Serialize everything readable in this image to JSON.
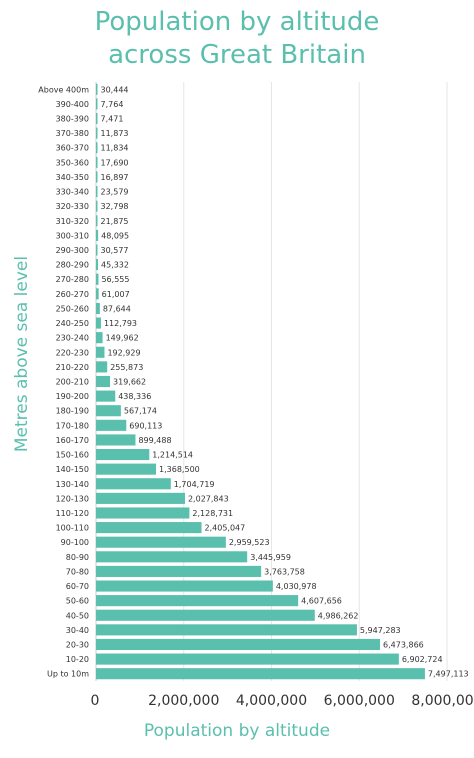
{
  "title_line1": "Population by altitude",
  "title_line2": "across Great Britain",
  "chart_data": {
    "type": "bar",
    "orientation": "horizontal",
    "title": "Population by altitude across Great Britain",
    "xlabel": "Population by altitude",
    "ylabel": "Metres above sea level",
    "xlim": [
      0,
      8000000
    ],
    "xticks": [
      "0",
      "2,000,000",
      "4,000,000",
      "6,000,000",
      "8,000,000"
    ],
    "grid": true,
    "bar_color": "#5bbfae",
    "categories": [
      "Above 400m",
      "390-400",
      "380-390",
      "370-380",
      "360-370",
      "350-360",
      "340-350",
      "330-340",
      "320-330",
      "310-320",
      "300-310",
      "290-300",
      "280-290",
      "270-280",
      "260-270",
      "250-260",
      "240-250",
      "230-240",
      "220-230",
      "210-220",
      "200-210",
      "190-200",
      "180-190",
      "170-180",
      "160-170",
      "150-160",
      "140-150",
      "130-140",
      "120-130",
      "110-120",
      "100-110",
      "90-100",
      "80-90",
      "70-80",
      "60-70",
      "50-60",
      "40-50",
      "30-40",
      "20-30",
      "10-20",
      "Up to 10m"
    ],
    "values": [
      30444,
      7764,
      7471,
      11873,
      11834,
      17690,
      16897,
      23579,
      32798,
      21875,
      48095,
      30577,
      45332,
      56555,
      61007,
      87644,
      112793,
      149962,
      192929,
      255873,
      319662,
      438336,
      567174,
      690113,
      899488,
      1214514,
      1368500,
      1704719,
      2027843,
      2128731,
      2405047,
      2959523,
      3445959,
      3763758,
      4030978,
      4607656,
      4986262,
      5947283,
      6473866,
      6902724,
      7497113
    ],
    "value_labels": [
      "30,444",
      "7,764",
      "7,471",
      "11,873",
      "11,834",
      "17,690",
      "16,897",
      "23,579",
      "32,798",
      "21,875",
      "48,095",
      "30,577",
      "45,332",
      "56,555",
      "61,007",
      "87,644",
      "112,793",
      "149,962",
      "192,929",
      "255,873",
      "319,662",
      "438,336",
      "567,174",
      "690,113",
      "899,488",
      "1,214,514",
      "1,368,500",
      "1,704,719",
      "2,027,843",
      "2,128,731",
      "2,405,047",
      "2,959,523",
      "3,445,959",
      "3,763,758",
      "4,030,978",
      "4,607,656",
      "4,986,262",
      "5,947,283",
      "6,473,866",
      "6,902,724",
      "7,497,113"
    ]
  }
}
